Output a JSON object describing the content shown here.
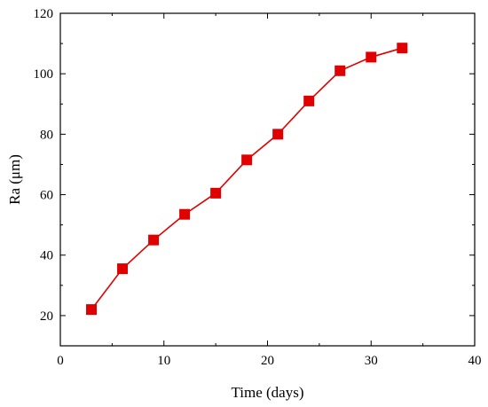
{
  "chart_data": {
    "type": "line",
    "title": "",
    "xlabel": "Time (days)",
    "ylabel": "Ra (μm)",
    "xlim": [
      0,
      40
    ],
    "ylim": [
      10,
      120
    ],
    "xticks": [
      0,
      10,
      20,
      30,
      40
    ],
    "yticks": [
      20,
      40,
      60,
      80,
      100,
      120
    ],
    "grid": false,
    "series": [
      {
        "color": "#e00000",
        "marker": "square",
        "x": [
          3,
          6,
          9,
          12,
          15,
          18,
          21,
          24,
          27,
          30,
          33
        ],
        "y": [
          22,
          35.5,
          45,
          53.5,
          60.5,
          71.5,
          80,
          91,
          101,
          105.5,
          108.5
        ]
      }
    ]
  }
}
